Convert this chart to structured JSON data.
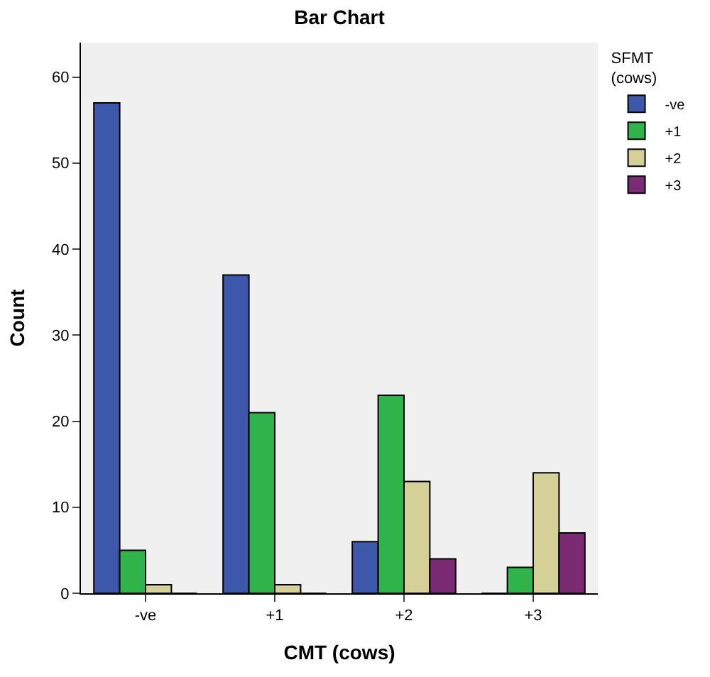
{
  "chart_data": {
    "type": "bar",
    "title": "Bar Chart",
    "xlabel": "CMT (cows)",
    "ylabel": "Count",
    "legend_title": "SFMT\n(cows)",
    "legend": "top right",
    "grid": false,
    "categories": [
      "-ve",
      "+1",
      "+2",
      "+3"
    ],
    "ylim": [
      0,
      64
    ],
    "yticks": [
      0,
      10,
      20,
      30,
      40,
      50,
      60
    ],
    "series": [
      {
        "name": "-ve",
        "color": "#3d58ab",
        "values": [
          57,
          37,
          6,
          0
        ]
      },
      {
        "name": "+1",
        "color": "#2fb34a",
        "values": [
          5,
          21,
          23,
          3
        ]
      },
      {
        "name": "+2",
        "color": "#d5cf98",
        "values": [
          1,
          1,
          13,
          14
        ]
      },
      {
        "name": "+3",
        "color": "#7b2a74",
        "values": [
          0,
          0,
          4,
          7
        ]
      }
    ]
  }
}
